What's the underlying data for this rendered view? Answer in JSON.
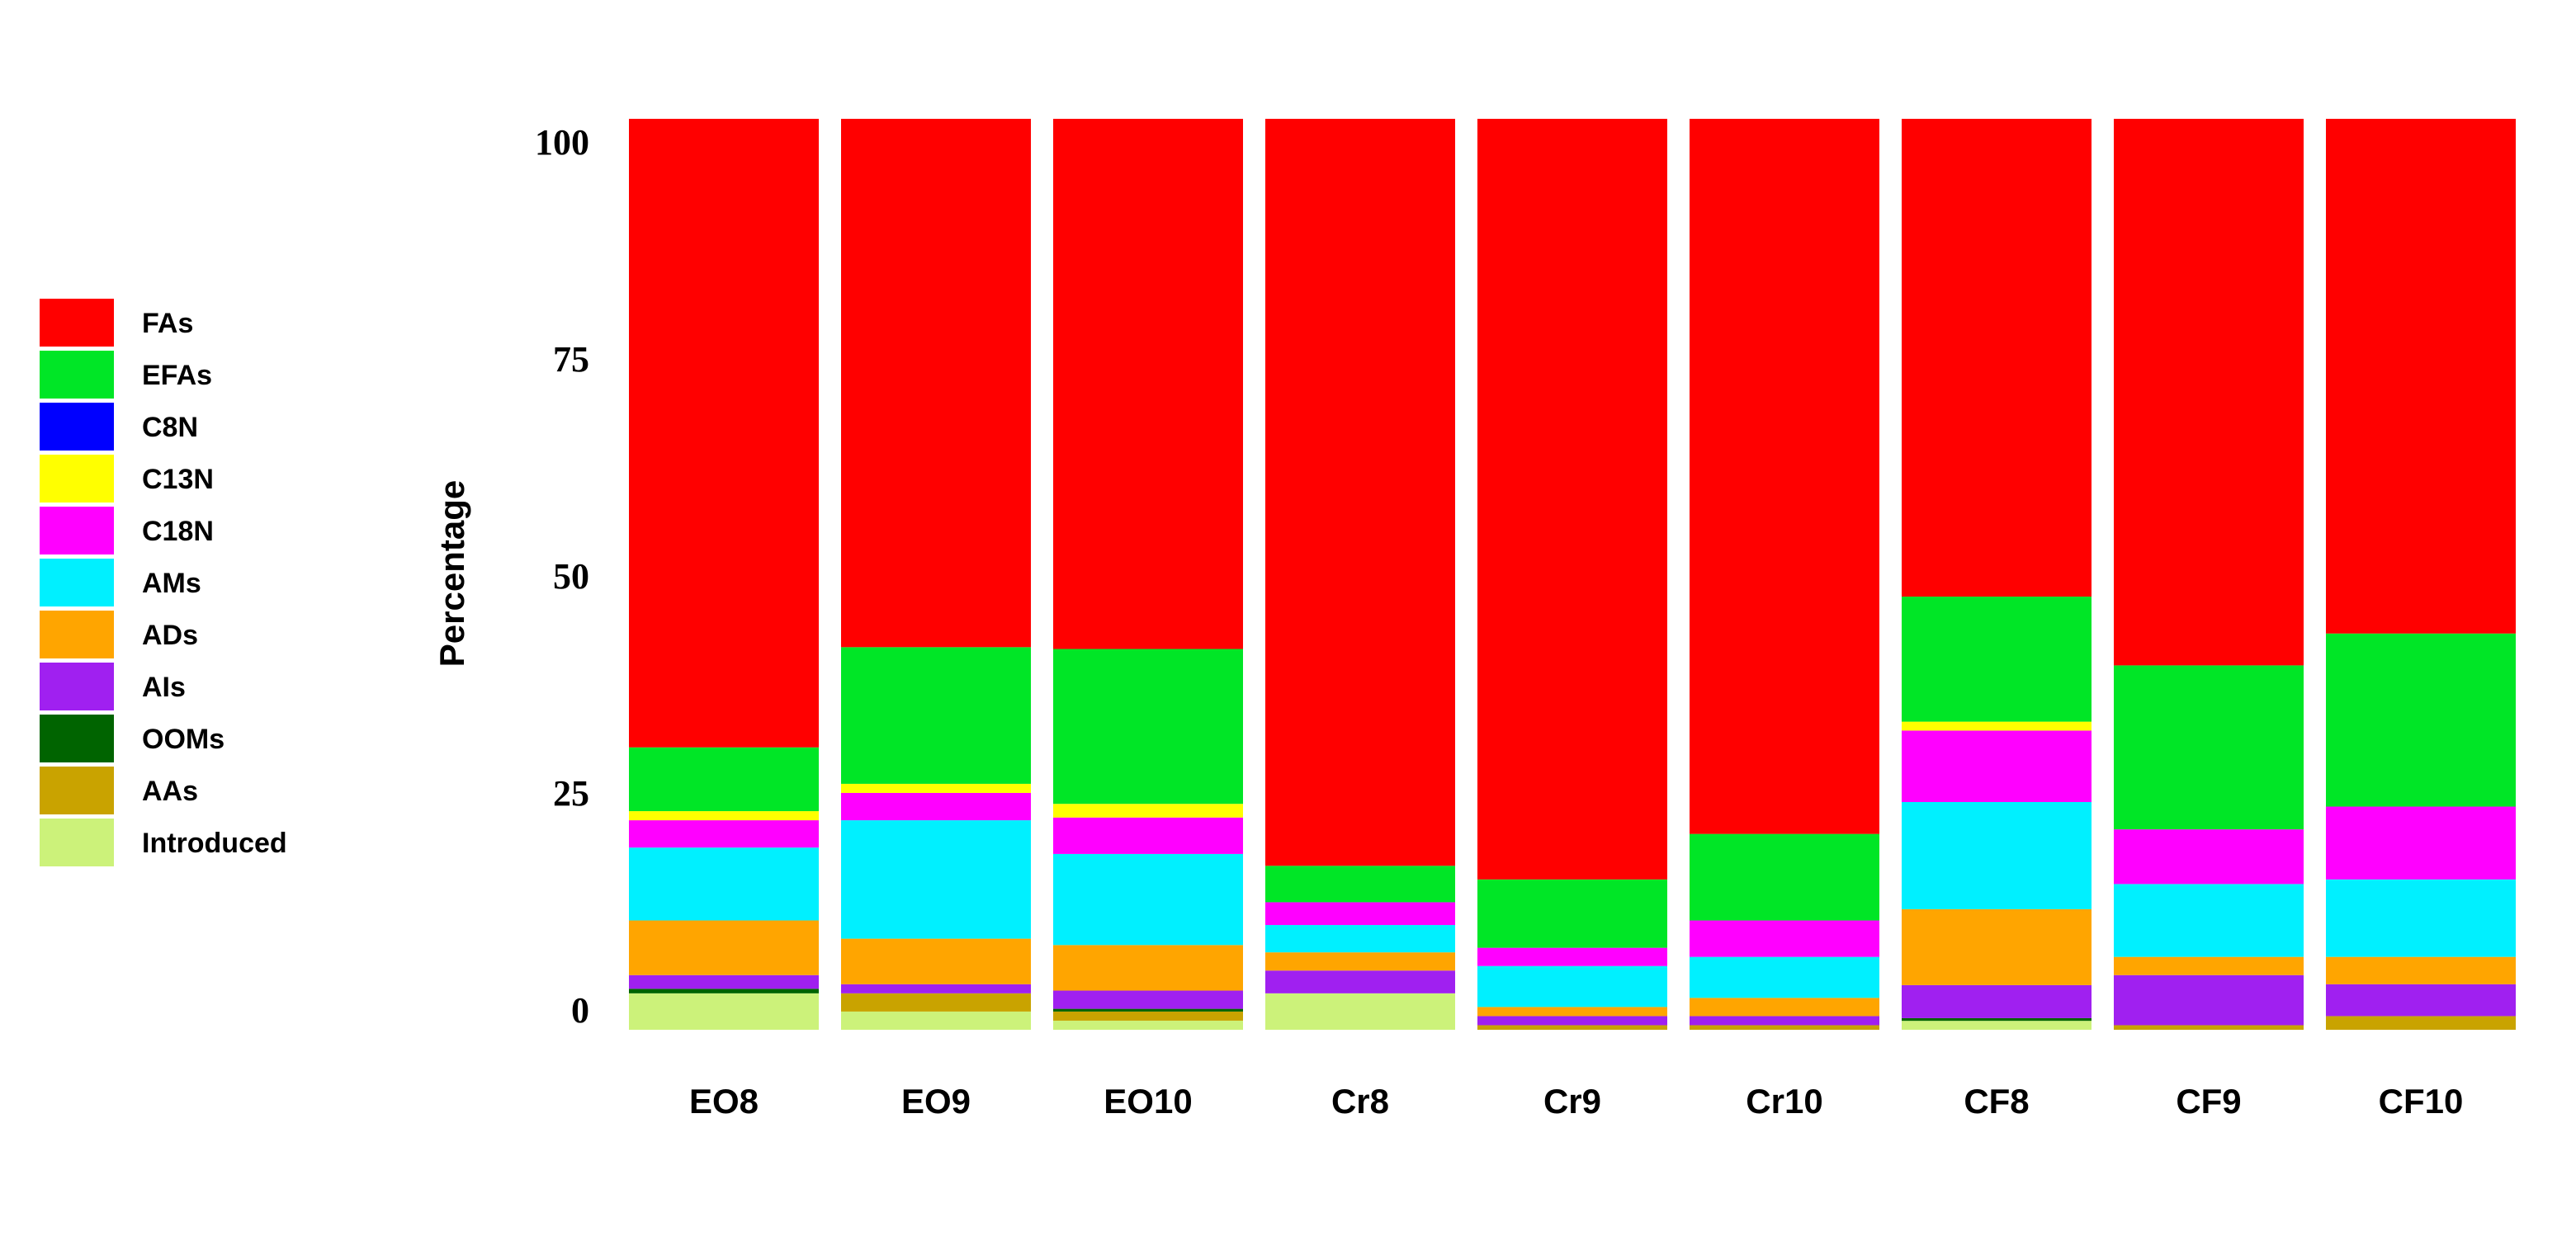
{
  "chart_data": {
    "type": "bar",
    "stacked": true,
    "title": "",
    "xlabel": "",
    "ylabel": "Percentage",
    "ylim": [
      0,
      100
    ],
    "yticks": [
      "0",
      "25",
      "50",
      "75",
      "100"
    ],
    "legend_position": "left",
    "categories": [
      "EO8",
      "EO9",
      "EO10",
      "Cr8",
      "Cr9",
      "Cr10",
      "CF8",
      "CF9",
      "CF10"
    ],
    "series": [
      {
        "name": "Introduced",
        "color": "#ccf27a",
        "values": [
          4,
          2,
          1,
          4,
          0,
          0,
          1,
          0,
          0
        ]
      },
      {
        "name": "AAs",
        "color": "#c9a300",
        "values": [
          0,
          2,
          1,
          0,
          0.5,
          0.5,
          0,
          0.5,
          1.5
        ]
      },
      {
        "name": "OOMs",
        "color": "#006400",
        "values": [
          0.5,
          0,
          0.3,
          0,
          0,
          0,
          0.3,
          0,
          0
        ]
      },
      {
        "name": "AIs",
        "color": "#a020f0",
        "values": [
          1.5,
          1,
          2,
          2.5,
          1,
          1,
          3.7,
          5.5,
          3.5
        ]
      },
      {
        "name": "ADs",
        "color": "#ffa500",
        "values": [
          6,
          5,
          5,
          2,
          1,
          2,
          8.5,
          2,
          3
        ]
      },
      {
        "name": "AMs",
        "color": "#00f0ff",
        "values": [
          8,
          13,
          10,
          3,
          4.5,
          4.5,
          12,
          8,
          8.5
        ]
      },
      {
        "name": "C18N",
        "color": "#ff00ff",
        "values": [
          3,
          3,
          4,
          2.5,
          2,
          4,
          8,
          6,
          8
        ]
      },
      {
        "name": "C13N",
        "color": "#ffff00",
        "values": [
          1,
          1,
          1.5,
          0,
          0,
          0,
          1,
          0,
          0
        ]
      },
      {
        "name": "C8N",
        "color": "#0000ff",
        "values": [
          0,
          0,
          0,
          0,
          0,
          0,
          0,
          0,
          0
        ]
      },
      {
        "name": "EFAs",
        "color": "#00e626",
        "values": [
          7,
          15,
          17,
          4,
          7.5,
          9.5,
          14,
          18,
          19
        ]
      },
      {
        "name": "FAs",
        "color": "#ff0000",
        "values": [
          69,
          58,
          58.2,
          82,
          83.5,
          78.5,
          53.5,
          60,
          56.5
        ]
      }
    ],
    "legend_order": [
      "FAs",
      "EFAs",
      "C8N",
      "C13N",
      "C18N",
      "AMs",
      "ADs",
      "AIs",
      "OOMs",
      "AAs",
      "Introduced"
    ]
  }
}
